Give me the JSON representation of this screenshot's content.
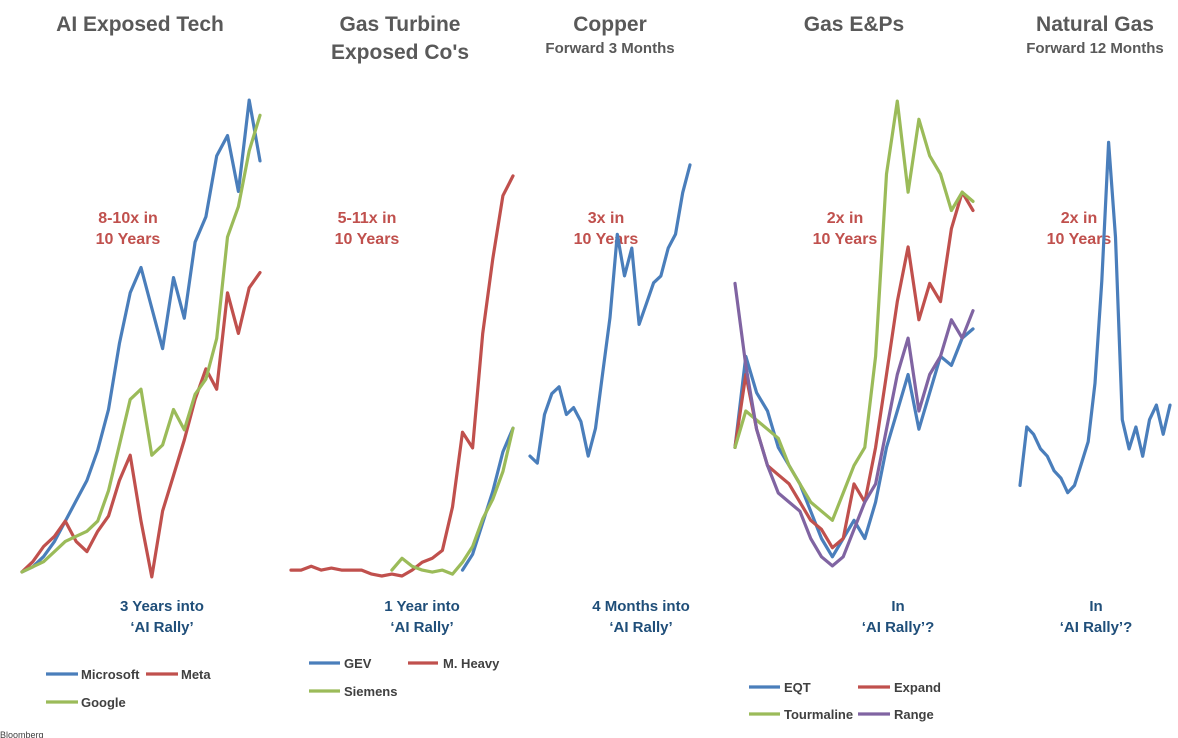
{
  "colors": {
    "blue": "#4a7ebb",
    "red": "#c0504d",
    "green": "#9bbb59",
    "purple": "#8064a2"
  },
  "source": "Bloomberg",
  "chart_data": [
    {
      "type": "line",
      "title": "AI Exposed Tech",
      "subtitle": "",
      "growth_note": [
        "8-10x in",
        "10 Years"
      ],
      "phase_note": [
        "3 Years into",
        "‘AI Rally’"
      ],
      "series": [
        {
          "name": "Microsoft",
          "color": "#4a7ebb",
          "values": [
            1,
            1.1,
            1.3,
            1.6,
            2.0,
            2.4,
            2.8,
            3.4,
            4.2,
            5.5,
            6.5,
            7.0,
            6.2,
            5.4,
            6.8,
            6.0,
            7.5,
            8.0,
            9.2,
            9.6,
            8.5,
            10.3,
            9.1
          ]
        },
        {
          "name": "Meta",
          "color": "#c0504d",
          "values": [
            1,
            1.2,
            1.5,
            1.7,
            2.0,
            1.6,
            1.4,
            1.8,
            2.1,
            2.8,
            3.3,
            2.0,
            0.9,
            2.2,
            2.9,
            3.6,
            4.4,
            5.0,
            4.6,
            6.5,
            5.7,
            6.6,
            6.9
          ]
        },
        {
          "name": "Google",
          "color": "#9bbb59",
          "values": [
            1,
            1.1,
            1.2,
            1.4,
            1.6,
            1.7,
            1.8,
            2.0,
            2.6,
            3.5,
            4.4,
            4.6,
            3.3,
            3.5,
            4.2,
            3.8,
            4.5,
            4.8,
            5.6,
            7.6,
            8.2,
            9.3,
            10.0
          ]
        }
      ]
    },
    {
      "type": "line",
      "title": "Gas Turbine",
      "title2": "Exposed Co's",
      "subtitle": "",
      "growth_note": [
        "5-11x in",
        "10 Years"
      ],
      "phase_note": [
        "1 Year into",
        "‘AI Rally’"
      ],
      "series": [
        {
          "name": "GEV",
          "color": "#4a7ebb",
          "values": [
            null,
            null,
            null,
            null,
            null,
            null,
            null,
            null,
            null,
            null,
            null,
            null,
            null,
            null,
            null,
            null,
            null,
            1,
            1.4,
            2.2,
            3.0,
            4.0,
            4.6
          ]
        },
        {
          "name": "M. Heavy",
          "color": "#c0504d",
          "values": [
            1,
            1.0,
            1.1,
            1.0,
            1.05,
            1.0,
            1.0,
            1.0,
            0.9,
            0.85,
            0.9,
            0.85,
            1.0,
            1.2,
            1.3,
            1.5,
            2.6,
            4.5,
            4.1,
            7.0,
            8.9,
            10.5,
            11.0
          ]
        },
        {
          "name": "Siemens",
          "color": "#9bbb59",
          "values": [
            null,
            null,
            null,
            null,
            null,
            null,
            null,
            null,
            null,
            null,
            1,
            1.3,
            1.1,
            1.0,
            0.95,
            1.0,
            0.9,
            1.2,
            1.6,
            2.3,
            2.8,
            3.5,
            4.6
          ]
        }
      ]
    },
    {
      "type": "line",
      "title": "Copper",
      "subtitle": "Forward 3 Months",
      "growth_note": [
        "3x in",
        "10 Years"
      ],
      "phase_note": [
        "4 Months into",
        "‘AI Rally’"
      ],
      "series": [
        {
          "name": "Copper",
          "color": "#4a7ebb",
          "values": [
            1.0,
            0.95,
            1.3,
            1.45,
            1.5,
            1.3,
            1.35,
            1.25,
            1.0,
            1.2,
            1.6,
            2.0,
            2.6,
            2.3,
            2.5,
            1.95,
            2.1,
            2.25,
            2.3,
            2.5,
            2.6,
            2.9,
            3.1
          ]
        }
      ]
    },
    {
      "type": "line",
      "title": "Gas E&Ps",
      "subtitle": "",
      "growth_note": [
        "2x in",
        "10 Years"
      ],
      "phase_note": [
        "In",
        "‘AI Rally’?"
      ],
      "series": [
        {
          "name": "EQT",
          "color": "#4a7ebb",
          "values": [
            1.1,
            1.6,
            1.4,
            1.3,
            1.1,
            1.0,
            0.9,
            0.75,
            0.6,
            0.5,
            0.6,
            0.7,
            0.6,
            0.8,
            1.1,
            1.3,
            1.5,
            1.2,
            1.4,
            1.6,
            1.55,
            1.7,
            1.75
          ]
        },
        {
          "name": "Expand",
          "color": "#c0504d",
          "values": [
            1.1,
            1.5,
            1.2,
            1.0,
            0.95,
            0.9,
            0.8,
            0.7,
            0.65,
            0.55,
            0.6,
            0.9,
            0.8,
            1.1,
            1.5,
            1.9,
            2.2,
            1.8,
            2.0,
            1.9,
            2.3,
            2.5,
            2.4
          ]
        },
        {
          "name": "Tourmaline",
          "color": "#9bbb59",
          "values": [
            1.1,
            1.3,
            1.25,
            1.2,
            1.15,
            1.0,
            0.9,
            0.8,
            0.75,
            0.7,
            0.85,
            1.0,
            1.1,
            1.6,
            2.6,
            3.0,
            2.5,
            2.9,
            2.7,
            2.6,
            2.4,
            2.5,
            2.45
          ]
        },
        {
          "name": "Range",
          "color": "#8064a2",
          "values": [
            2.0,
            1.55,
            1.2,
            1.0,
            0.85,
            0.8,
            0.75,
            0.6,
            0.5,
            0.45,
            0.5,
            0.65,
            0.8,
            0.9,
            1.2,
            1.5,
            1.7,
            1.3,
            1.5,
            1.6,
            1.8,
            1.7,
            1.85
          ]
        }
      ]
    },
    {
      "type": "line",
      "title": "Natural Gas",
      "subtitle": "Forward 12 Months",
      "growth_note": [
        "2x in",
        "10 Years"
      ],
      "phase_note": [
        "In",
        "‘AI Rally’?"
      ],
      "series": [
        {
          "name": "Natural Gas",
          "color": "#4a7ebb",
          "values": [
            0.9,
            1.3,
            1.25,
            1.15,
            1.1,
            1.0,
            0.95,
            0.85,
            0.9,
            1.05,
            1.2,
            1.6,
            2.3,
            3.25,
            2.6,
            1.35,
            1.15,
            1.3,
            1.1,
            1.35,
            1.45,
            1.25,
            1.45
          ]
        }
      ]
    }
  ],
  "legends": [
    {
      "series": [
        "Microsoft",
        "Meta",
        "Google"
      ]
    },
    {
      "series": [
        "GEV",
        "M. Heavy",
        "Siemens"
      ]
    },
    {
      "series": []
    },
    {
      "series": [
        "EQT",
        "Expand",
        "Tourmaline",
        "Range"
      ]
    },
    {
      "series": []
    }
  ]
}
